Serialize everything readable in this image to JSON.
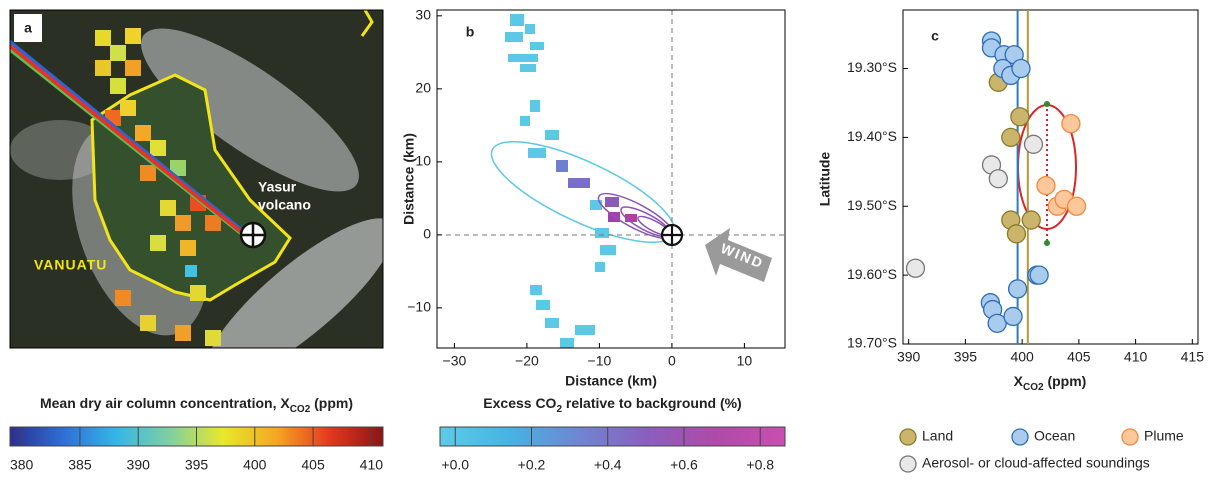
{
  "chart_data": [
    {
      "type": "map",
      "label": "a",
      "annotations": [
        "Yasur",
        "volcano"
      ],
      "region": "VANUATU",
      "colorbar": {
        "title": "Mean dry air column concentration, X",
        "title_sub": "CO2",
        "title_end": " (ppm)",
        "lim": [
          379,
          411
        ],
        "ticks": [
          380,
          385,
          390,
          395,
          400,
          405,
          410
        ],
        "colors": [
          "#2b2f8f",
          "#2f6fd6",
          "#35b6e8",
          "#7fd0a0",
          "#e8e82a",
          "#f5a623",
          "#e4381f",
          "#8b1414"
        ]
      }
    },
    {
      "type": "pixels",
      "label": "b",
      "xlabel": "Distance (km)",
      "ylabel": "Distance (km)",
      "annotation": "WIND",
      "xlim": [
        -32.4,
        15.6
      ],
      "ylim": [
        -15.5,
        30.8
      ],
      "xticks": [
        {
          "value": -30,
          "label": "−30"
        },
        {
          "value": -20,
          "label": "−20"
        },
        {
          "value": -10,
          "label": "−10"
        },
        0,
        10
      ],
      "yticks": [
        {
          "value": -10,
          "label": "−10"
        },
        0,
        10,
        20,
        30
      ],
      "colorbar": {
        "title": "Excess CO",
        "title_sub": "2",
        "title_end": " relative to background (%)",
        "lim": [
          -0.04,
          0.865
        ],
        "ticks": [
          {
            "value": 0,
            "label": "+0.0"
          },
          {
            "value": 0.2,
            "label": "+0.2"
          },
          {
            "value": 0.4,
            "label": "+0.4"
          },
          {
            "value": 0.6,
            "label": "+0.6"
          },
          {
            "value": 0.8,
            "label": "+0.8"
          }
        ],
        "colors": [
          "#5ccbe8",
          "#45b4e4",
          "#6f86d2",
          "#8a5fbf",
          "#b04aa8",
          "#c94fb0"
        ]
      }
    },
    {
      "type": "scatter",
      "label": "c",
      "ylabel": "Latitude",
      "xlabel": "X",
      "xlabel_sub": "CO2",
      "xlabel_end": " (ppm)",
      "xlim": [
        389.5,
        415.5
      ],
      "ylim": [
        19.7,
        19.215
      ],
      "xticks": [
        390,
        395,
        400,
        405,
        410,
        415
      ],
      "yticks": [
        {
          "value": 19.3,
          "label": "19.30°S"
        },
        {
          "value": 19.4,
          "label": "19.40°S"
        },
        {
          "value": 19.5,
          "label": "19.50°S"
        },
        {
          "value": 19.6,
          "label": "19.60°S"
        },
        {
          "value": 19.7,
          "label": "19.70°S"
        }
      ],
      "vlines": [
        {
          "value": 399.6,
          "color": "#2e7bc4"
        },
        {
          "value": 400.5,
          "color": "#b09a3a"
        }
      ],
      "series": [
        {
          "name": "Land",
          "color": "#cbb56c",
          "edgecolor": "#8a7a2a",
          "x": [
            397.9,
            399.8,
            399.0,
            399.0,
            399.5,
            400.8
          ],
          "values": [
            19.32,
            19.37,
            19.4,
            19.52,
            19.54,
            19.52
          ]
        },
        {
          "name": "Ocean",
          "color": "#a9cbee",
          "edgecolor": "#2e6db4",
          "x": [
            397.3,
            397.3,
            398.4,
            399.3,
            398.3,
            399.0,
            399.9,
            397.2,
            397.4,
            397.8,
            399.2,
            399.6,
            401.3,
            401.5
          ],
          "values": [
            19.26,
            19.27,
            19.28,
            19.28,
            19.3,
            19.31,
            19.3,
            19.64,
            19.65,
            19.67,
            19.66,
            19.62,
            19.6,
            19.6
          ]
        },
        {
          "name": "Plume",
          "color": "#fbc79b",
          "edgecolor": "#f08a3e",
          "x": [
            404.3,
            402.1,
            403.1,
            403.7,
            404.8
          ],
          "values": [
            19.38,
            19.47,
            19.5,
            19.49,
            19.5
          ]
        },
        {
          "name": "Aerosol- or cloud-affected soundings",
          "color": "#e8e8e8",
          "edgecolor": "#777777",
          "x": [
            390.6,
            397.3,
            397.9,
            401.0
          ],
          "values": [
            19.59,
            19.44,
            19.46,
            19.41
          ]
        }
      ]
    }
  ]
}
